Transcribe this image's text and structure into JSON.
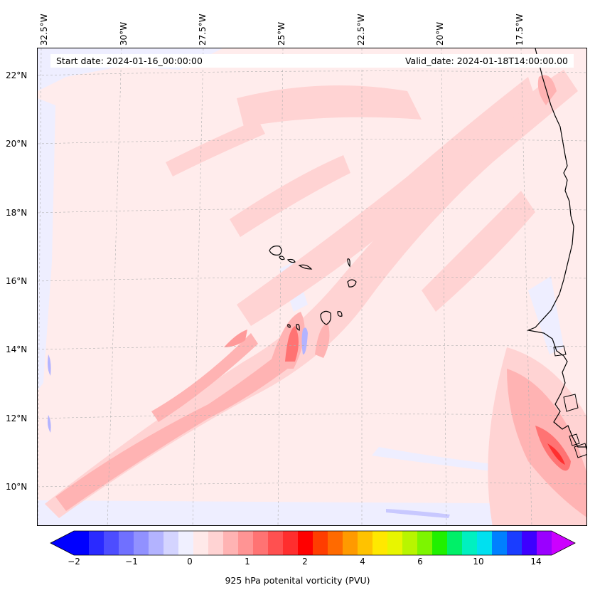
{
  "start_date": "Start date: 2024-01-16_00:00:00",
  "valid_date": "Valid_date: 2024-01-18T14:00:00.00",
  "lon_labels": [
    "32.5°W",
    "30°W",
    "27.5°W",
    "25°W",
    "22.5°W",
    "20°W",
    "17.5°W"
  ],
  "lat_labels": [
    "22°N",
    "20°N",
    "18°N",
    "16°N",
    "14°N",
    "12°N",
    "10°N"
  ],
  "colorbar": {
    "label": "925 hPa potenital vorticity (PVU)",
    "ticks": [
      "−2",
      "−1",
      "0",
      "1",
      "2",
      "4",
      "6",
      "10",
      "14"
    ],
    "colors": [
      "#0000ff",
      "#2a2aff",
      "#4d4dff",
      "#7070ff",
      "#9191ff",
      "#b3b3ff",
      "#d4d4ff",
      "#f0f0ff",
      "#ffe9e9",
      "#ffd3d3",
      "#ffb3b3",
      "#ff9494",
      "#ff7373",
      "#ff5050",
      "#ff2e2e",
      "#ff0000",
      "#ff3d00",
      "#ff6a00",
      "#ff9a00",
      "#ffc200",
      "#ffe800",
      "#e8f500",
      "#b8f500",
      "#7df500",
      "#20f000",
      "#00f068",
      "#00f0c0",
      "#00e0f0",
      "#0080ff",
      "#1a3dff",
      "#3d00ff",
      "#9a00ff"
    ],
    "under_color": "#0000ff",
    "over_color": "#cc00ff"
  },
  "colors": {
    "background_pv": "#ffecec",
    "light_red": "#ffd3d3",
    "medium_red": "#ffb3b3",
    "strong_red": "#ff7373",
    "light_blue": "#eeeeff",
    "coastline": "#000000"
  }
}
